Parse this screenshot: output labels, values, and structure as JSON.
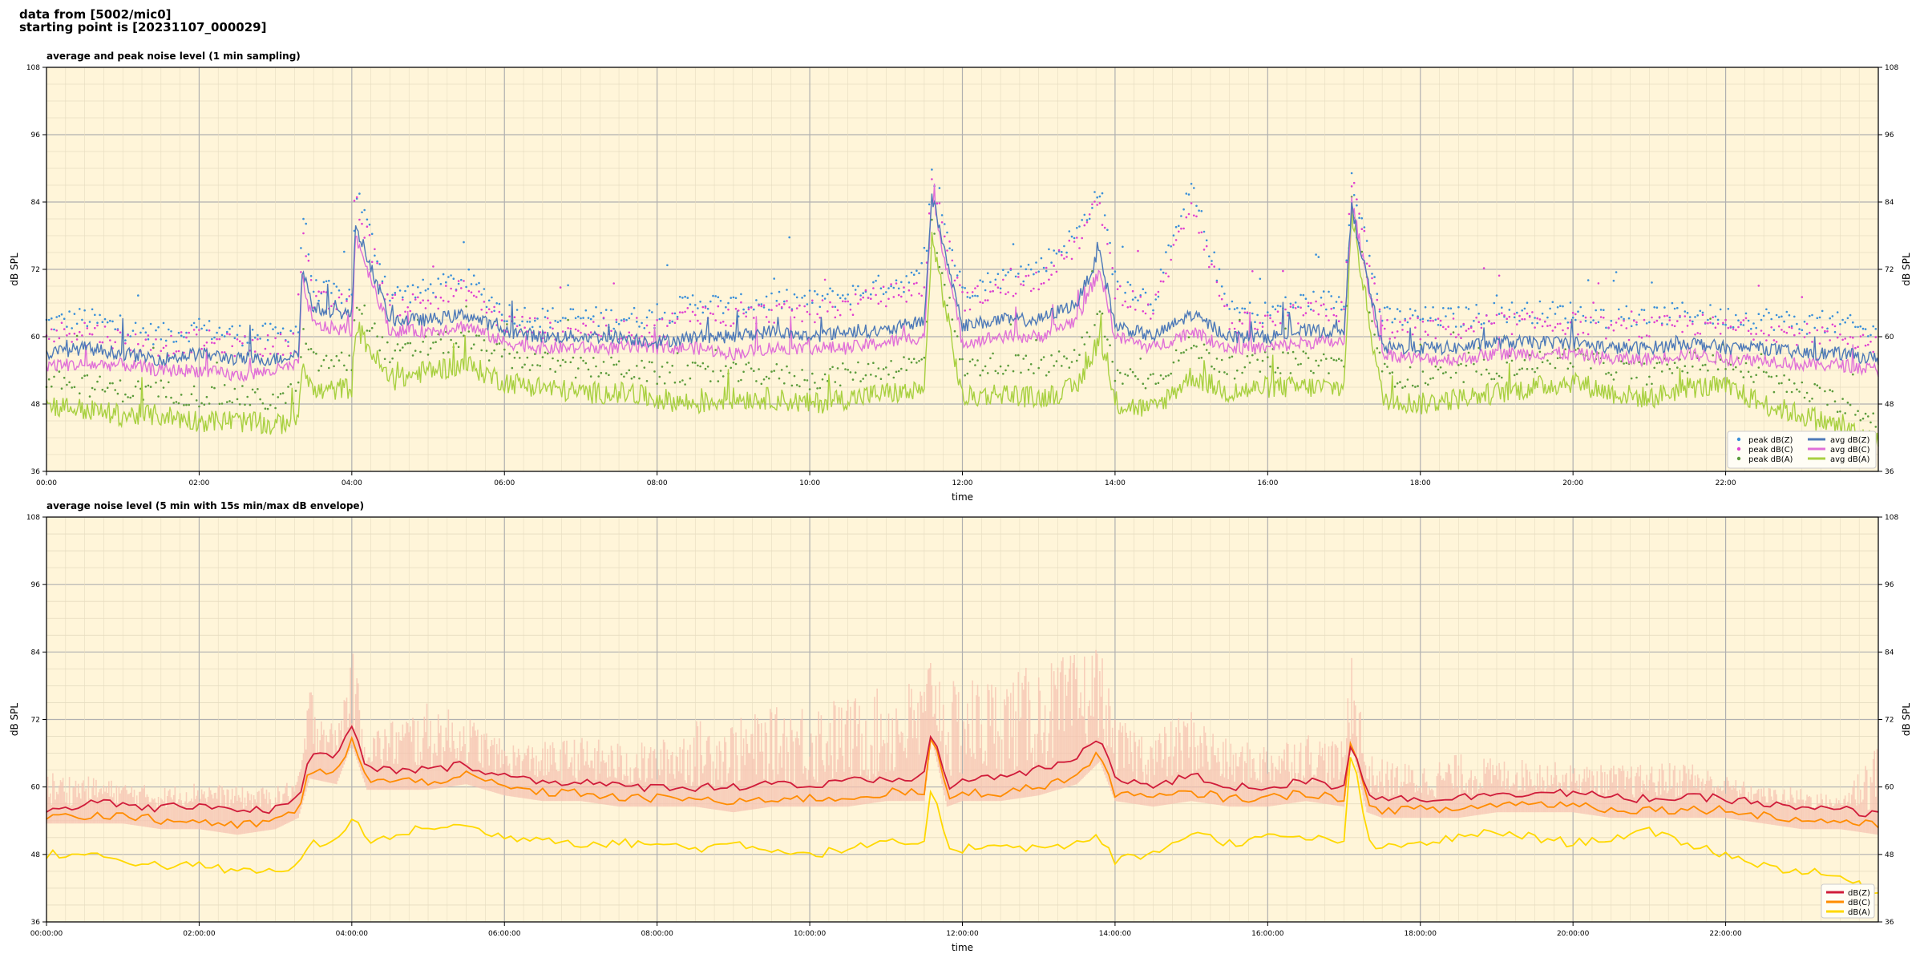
{
  "header": {
    "line1": "data from [5002/mic0]",
    "line2": "starting point is [20231107_000029]"
  },
  "colors": {
    "plot_bg": "#fff5d9",
    "peak_z": "#3a8fd9",
    "peak_c": "#e040d0",
    "peak_a": "#5b9b3b",
    "avg_z": "#4d79b8",
    "avg_c": "#e070d8",
    "avg_a": "#a8d040",
    "env_fill": "#f5c2b0",
    "dbz": "#d01c3a",
    "dbc": "#ff8c00",
    "dba": "#ffd800"
  },
  "chart_data": [
    {
      "type": "line",
      "title": "average and peak noise level (1 min sampling)",
      "xlabel": "time",
      "ylabel": "dB SPL",
      "ylim": [
        36,
        108
      ],
      "xlim_hours": [
        0,
        24
      ],
      "grid": true,
      "legend_position": "bottom-right",
      "yticks": [
        "36",
        "48",
        "60",
        "72",
        "84",
        "96",
        "108"
      ],
      "xticks": [
        "00:00",
        "02:00",
        "04:00",
        "06:00",
        "08:00",
        "10:00",
        "12:00",
        "14:00",
        "16:00",
        "18:00",
        "20:00",
        "22:00"
      ],
      "legend": [
        "peak dB(Z)",
        "peak dB(C)",
        "peak dB(A)",
        "avg dB(Z)",
        "avg dB(C)",
        "avg dB(A)"
      ],
      "x_hours": [
        0,
        0.5,
        1,
        1.5,
        2,
        2.5,
        3,
        3.3,
        3.35,
        3.5,
        4,
        4.05,
        4.5,
        5,
        5.5,
        6,
        6.5,
        7,
        7.5,
        8,
        8.5,
        9,
        9.5,
        10,
        10.5,
        11,
        11.5,
        11.6,
        12,
        12.5,
        13,
        13.5,
        13.8,
        14,
        14.5,
        15,
        15.5,
        16,
        16.5,
        17,
        17.1,
        17.5,
        18,
        18.5,
        19,
        19.5,
        20,
        20.5,
        21,
        21.5,
        22,
        22.5,
        23,
        23.5,
        24
      ],
      "series": [
        {
          "name": "avg dB(Z)",
          "values": [
            57,
            58,
            57,
            56,
            57,
            56,
            56,
            57,
            72,
            65,
            64,
            80,
            63,
            63,
            64,
            61,
            60,
            60,
            60,
            59,
            60,
            60,
            61,
            60,
            61,
            61,
            63,
            85,
            62,
            63,
            63,
            66,
            75,
            62,
            60,
            64,
            60,
            60,
            61,
            61,
            83,
            58,
            58,
            58,
            59,
            59,
            59,
            58,
            58,
            59,
            58,
            58,
            57,
            57,
            56
          ]
        },
        {
          "name": "avg dB(C)",
          "values": [
            55,
            55,
            55,
            54,
            54,
            53,
            54,
            55,
            70,
            62,
            61,
            78,
            61,
            61,
            62,
            59,
            58,
            58,
            58,
            58,
            58,
            57,
            58,
            58,
            58,
            59,
            60,
            85,
            59,
            60,
            60,
            63,
            72,
            60,
            58,
            61,
            58,
            58,
            59,
            59,
            84,
            57,
            56,
            56,
            57,
            57,
            57,
            56,
            56,
            57,
            56,
            56,
            55,
            55,
            54
          ]
        },
        {
          "name": "avg dB(A)",
          "values": [
            48,
            47,
            46,
            46,
            45,
            45,
            44,
            46,
            56,
            50,
            51,
            62,
            52,
            54,
            55,
            52,
            51,
            50,
            50,
            49,
            48,
            49,
            49,
            48,
            49,
            50,
            50,
            78,
            49,
            50,
            49,
            51,
            60,
            48,
            47,
            53,
            50,
            51,
            51,
            51,
            82,
            49,
            48,
            49,
            50,
            51,
            52,
            50,
            49,
            51,
            51,
            48,
            46,
            44,
            41
          ]
        },
        {
          "name": "peak dB(Z)",
          "values": [
            62,
            63,
            61,
            60,
            61,
            60,
            60,
            61,
            83,
            68,
            67,
            86,
            67,
            68,
            70,
            64,
            63,
            63,
            63,
            63,
            66,
            65,
            66,
            66,
            67,
            69,
            70,
            88,
            68,
            70,
            72,
            78,
            86,
            70,
            66,
            86,
            64,
            64,
            66,
            66,
            89,
            63,
            63,
            63,
            64,
            64,
            64,
            63,
            63,
            64,
            63,
            63,
            62,
            62,
            60
          ]
        },
        {
          "name": "peak dB(C)",
          "values": [
            60,
            61,
            59,
            58,
            59,
            58,
            58,
            59,
            80,
            66,
            65,
            84,
            65,
            66,
            68,
            62,
            61,
            61,
            61,
            61,
            64,
            63,
            64,
            64,
            65,
            67,
            68,
            87,
            66,
            68,
            70,
            76,
            84,
            68,
            64,
            84,
            62,
            62,
            64,
            64,
            88,
            61,
            61,
            61,
            62,
            62,
            62,
            61,
            61,
            62,
            61,
            61,
            60,
            60,
            58
          ]
        },
        {
          "name": "peak dB(A)",
          "values": [
            52,
            51,
            50,
            50,
            49,
            49,
            48,
            50,
            60,
            55,
            55,
            66,
            56,
            58,
            59,
            56,
            55,
            54,
            54,
            53,
            53,
            53,
            53,
            52,
            53,
            54,
            55,
            80,
            54,
            55,
            54,
            56,
            64,
            53,
            52,
            58,
            54,
            55,
            55,
            55,
            84,
            53,
            52,
            53,
            54,
            55,
            56,
            54,
            53,
            55,
            55,
            52,
            50,
            48,
            45
          ]
        }
      ]
    },
    {
      "type": "area",
      "title": "average noise level (5 min with 15s min/max dB envelope)",
      "xlabel": "time",
      "ylabel": "dB SPL",
      "ylim": [
        36,
        108
      ],
      "xlim_hours": [
        0,
        24
      ],
      "grid": true,
      "legend_position": "bottom-right",
      "yticks": [
        "36",
        "48",
        "60",
        "72",
        "84",
        "96",
        "108"
      ],
      "xticks": [
        "00:00:00",
        "02:00:00",
        "04:00:00",
        "06:00:00",
        "08:00:00",
        "10:00:00",
        "12:00:00",
        "14:00:00",
        "16:00:00",
        "18:00:00",
        "20:00:00",
        "22:00:00"
      ],
      "legend": [
        "dB(Z)",
        "dB(C)",
        "dB(A)"
      ],
      "x_hours": [
        0,
        0.5,
        1,
        1.5,
        2,
        2.5,
        3,
        3.3,
        3.45,
        3.8,
        4,
        4.2,
        4.5,
        5,
        5.5,
        6,
        6.5,
        7,
        7.5,
        8,
        8.5,
        9,
        9.5,
        10,
        10.5,
        11,
        11.5,
        11.6,
        11.8,
        12,
        12.5,
        13,
        13.5,
        13.8,
        14,
        14.5,
        15,
        15.5,
        16,
        16.5,
        17,
        17.1,
        17.3,
        17.5,
        18,
        18.5,
        19,
        19.5,
        20,
        20.5,
        21,
        21.5,
        22,
        22.5,
        23,
        23.5,
        24
      ],
      "series": [
        {
          "name": "dB(Z)",
          "values": [
            56,
            57,
            57,
            56,
            57,
            56,
            56,
            58,
            66,
            65,
            71,
            63,
            63,
            63,
            64,
            62,
            61,
            61,
            60,
            60,
            60,
            60,
            61,
            60,
            61,
            61,
            62,
            71,
            60,
            61,
            62,
            63,
            65,
            69,
            62,
            60,
            62,
            60,
            60,
            61,
            60,
            69,
            59,
            58,
            58,
            58,
            59,
            59,
            59,
            58,
            58,
            58,
            58,
            57,
            56,
            56,
            55
          ]
        },
        {
          "name": "dB(C)",
          "values": [
            55,
            55,
            55,
            54,
            54,
            53,
            54,
            56,
            63,
            62,
            69,
            61,
            61,
            61,
            62,
            60,
            59,
            59,
            58,
            58,
            58,
            57,
            58,
            58,
            58,
            59,
            59,
            70,
            58,
            59,
            59,
            60,
            62,
            66,
            59,
            58,
            59,
            58,
            58,
            59,
            58,
            69,
            57,
            56,
            56,
            56,
            57,
            57,
            57,
            56,
            56,
            56,
            56,
            55,
            54,
            54,
            53
          ]
        },
        {
          "name": "dB(A)",
          "values": [
            48,
            48,
            47,
            46,
            46,
            45,
            45,
            46,
            50,
            50,
            55,
            50,
            51,
            53,
            53,
            51,
            51,
            50,
            50,
            50,
            49,
            50,
            49,
            48,
            49,
            50,
            50,
            60,
            49,
            49,
            50,
            49,
            50,
            51,
            47,
            48,
            52,
            50,
            51,
            51,
            50,
            69,
            50,
            49,
            50,
            51,
            52,
            51,
            50,
            51,
            52,
            50,
            48,
            46,
            45,
            44,
            41
          ]
        },
        {
          "name": "max envelope",
          "values": [
            63,
            62,
            61,
            60,
            61,
            60,
            60,
            62,
            79,
            70,
            85,
            70,
            72,
            75,
            73,
            68,
            68,
            69,
            68,
            68,
            72,
            72,
            74,
            76,
            76,
            78,
            80,
            86,
            78,
            80,
            80,
            82,
            84,
            86,
            72,
            70,
            74,
            68,
            68,
            70,
            68,
            87,
            66,
            65,
            64,
            66,
            65,
            65,
            64,
            64,
            64,
            65,
            62,
            60,
            60,
            58,
            70
          ]
        }
      ]
    }
  ]
}
